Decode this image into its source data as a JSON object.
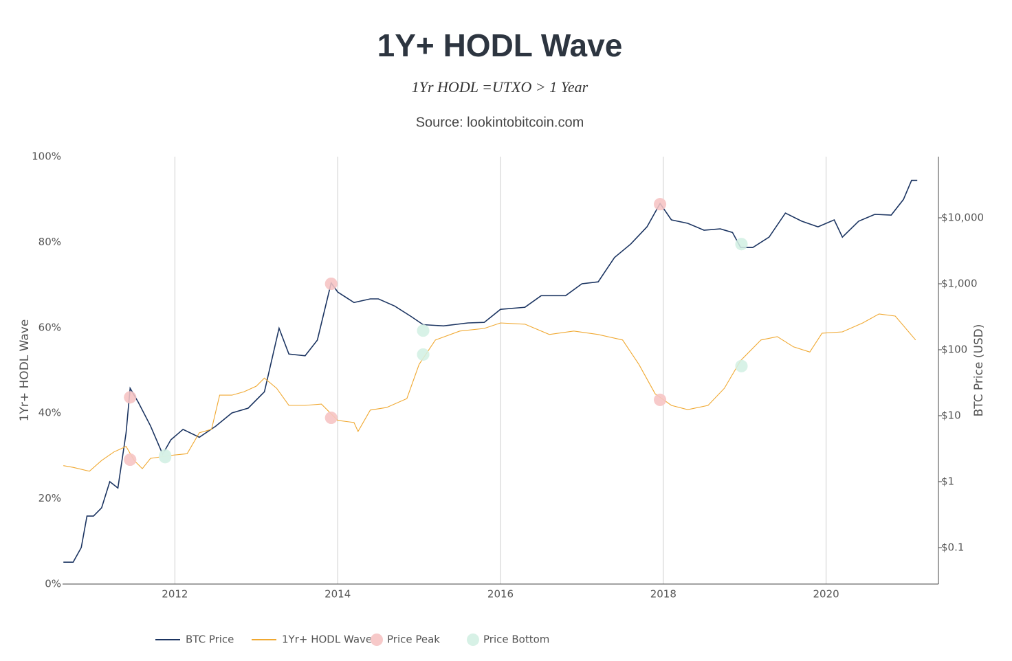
{
  "chart_data": {
    "type": "line",
    "title": "1Y+ HODL Wave",
    "subtitle": "1Yr HODL =UTXO > 1 Year",
    "source": "Source: lookintobitcoin.com",
    "y_label": "1Yr+ HODL Wave",
    "y2_label": "BTC Price (USD)",
    "xlim": [
      2010.62,
      2021.38
    ],
    "xticks": [
      2012,
      2014,
      2016,
      2018,
      2020
    ],
    "ylim": [
      0,
      100
    ],
    "yticks": [
      {
        "value": 0,
        "label": "0%"
      },
      {
        "value": 20,
        "label": "20%"
      },
      {
        "value": 40,
        "label": "40%"
      },
      {
        "value": 60,
        "label": "60%"
      },
      {
        "value": 80,
        "label": "80%"
      },
      {
        "value": 100,
        "label": "100%"
      }
    ],
    "y2lim": [
      0.028,
      84600
    ],
    "y2log": true,
    "y2ticks": [
      {
        "value": 0.1,
        "label": "$0.1"
      },
      {
        "value": 1,
        "label": "$1"
      },
      {
        "value": 10,
        "label": "$10"
      },
      {
        "value": 100,
        "label": "$100"
      },
      {
        "value": 1000,
        "label": "$1,000"
      },
      {
        "value": 10000,
        "label": "$10,000"
      }
    ],
    "x_grid": true,
    "legend": "bottom",
    "series": [
      {
        "name": "BTC Price",
        "color": "#1b3461",
        "axis": "y2",
        "mode": "line",
        "x": [
          2010.63,
          2010.75,
          2010.85,
          2010.92,
          2011.0,
          2011.1,
          2011.2,
          2011.3,
          2011.4,
          2011.45,
          2011.55,
          2011.7,
          2011.85,
          2011.95,
          2012.1,
          2012.3,
          2012.5,
          2012.7,
          2012.9,
          2013.1,
          2013.28,
          2013.4,
          2013.6,
          2013.75,
          2013.92,
          2014.0,
          2014.2,
          2014.4,
          2014.5,
          2014.7,
          2014.9,
          2015.05,
          2015.3,
          2015.6,
          2015.8,
          2016.0,
          2016.3,
          2016.5,
          2016.8,
          2017.0,
          2017.2,
          2017.4,
          2017.6,
          2017.8,
          2017.96,
          2018.1,
          2018.3,
          2018.5,
          2018.7,
          2018.85,
          2018.95,
          2019.1,
          2019.3,
          2019.5,
          2019.7,
          2019.9,
          2020.1,
          2020.2,
          2020.4,
          2020.6,
          2020.8,
          2020.95,
          2021.05,
          2021.12
        ],
        "values": [
          0.06,
          0.06,
          0.1,
          0.3,
          0.3,
          0.4,
          1.0,
          0.8,
          5.5,
          26,
          16,
          7,
          2.6,
          4.3,
          6.2,
          4.7,
          6.9,
          11,
          13,
          23,
          212,
          86,
          81,
          140,
          1030,
          750,
          520,
          590,
          590,
          460,
          320,
          240,
          230,
          255,
          260,
          410,
          440,
          660,
          660,
          1000,
          1070,
          2500,
          4000,
          7300,
          16500,
          9300,
          8250,
          6500,
          6800,
          6000,
          3550,
          3550,
          5100,
          11800,
          8900,
          7300,
          9300,
          5100,
          8900,
          11300,
          11000,
          19000,
          37000,
          37000
        ]
      },
      {
        "name": "1Yr+ HODL Wave",
        "color": "#f0a830",
        "mode": "line",
        "x": [
          2010.63,
          2010.75,
          2010.95,
          2011.1,
          2011.25,
          2011.4,
          2011.5,
          2011.6,
          2011.7,
          2011.95,
          2012.15,
          2012.3,
          2012.45,
          2012.55,
          2012.7,
          2012.85,
          2013.0,
          2013.1,
          2013.25,
          2013.4,
          2013.6,
          2013.8,
          2014.0,
          2014.2,
          2014.25,
          2014.4,
          2014.6,
          2014.85,
          2015.0,
          2015.2,
          2015.5,
          2015.8,
          2016.0,
          2016.3,
          2016.6,
          2016.9,
          2017.2,
          2017.5,
          2017.7,
          2017.9,
          2018.1,
          2018.3,
          2018.55,
          2018.75,
          2018.95,
          2019.2,
          2019.4,
          2019.6,
          2019.8,
          2019.95,
          2020.2,
          2020.45,
          2020.65,
          2020.85,
          2021.1
        ],
        "values": [
          27.7,
          27.3,
          26.4,
          28.9,
          30.9,
          32.2,
          28.9,
          27.0,
          29.4,
          30.1,
          30.5,
          35.4,
          36.2,
          44.2,
          44.2,
          45.0,
          46.3,
          48.2,
          45.8,
          41.8,
          41.8,
          42.1,
          38.3,
          37.8,
          35.7,
          40.7,
          41.3,
          43.4,
          51.4,
          57.1,
          59.2,
          59.8,
          61.1,
          60.8,
          58.4,
          59.2,
          58.4,
          57.1,
          51.4,
          44.5,
          41.8,
          40.8,
          41.8,
          45.8,
          52.3,
          57.1,
          57.9,
          55.5,
          54.3,
          58.7,
          59.0,
          61.1,
          63.2,
          62.7,
          57.1
        ]
      },
      {
        "name": "Price Peak",
        "color": "#f7c9c9",
        "mode": "markers",
        "x": [
          2011.45,
          2013.92,
          2017.96
        ],
        "values": [
          29.1,
          38.9,
          43.1
        ],
        "y2_values": [
          19,
          1000,
          16100
        ]
      },
      {
        "name": "Price Bottom",
        "color": "#d7f1e6",
        "mode": "markers",
        "x": [
          2011.88,
          2015.05,
          2018.96
        ],
        "values": [
          29.7,
          53.7,
          51.0
        ],
        "y2_values": [
          2.5,
          195,
          4000
        ]
      }
    ]
  }
}
